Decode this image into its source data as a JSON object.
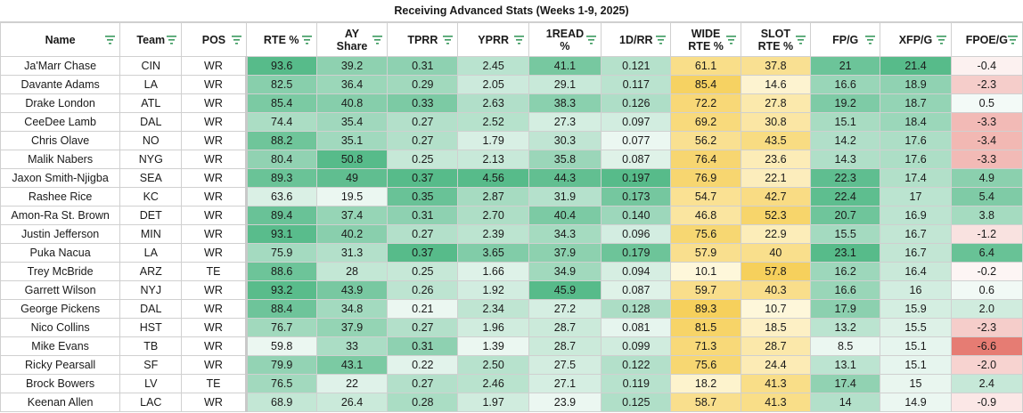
{
  "title": "Receiving Advanced Stats (Weeks 1-9, 2025)",
  "columns": [
    {
      "key": "name",
      "label": "Name"
    },
    {
      "key": "team",
      "label": "Team"
    },
    {
      "key": "pos",
      "label": "POS"
    },
    {
      "key": "rte",
      "label": "RTE %"
    },
    {
      "key": "ay",
      "label": "AY Share"
    },
    {
      "key": "tprr",
      "label": "TPRR"
    },
    {
      "key": "yprr",
      "label": "YPRR"
    },
    {
      "key": "read1",
      "label": "1READ %"
    },
    {
      "key": "d1rr",
      "label": "1D/RR"
    },
    {
      "key": "wide",
      "label": "WIDE RTE %"
    },
    {
      "key": "slot",
      "label": "SLOT RTE %"
    },
    {
      "key": "fpg",
      "label": "FP/G"
    },
    {
      "key": "xfpg",
      "label": "XFP/G"
    },
    {
      "key": "fpoe",
      "label": "FPOE/G"
    }
  ],
  "rows": [
    [
      "Ja'Marr Chase",
      "CIN",
      "WR",
      "93.6",
      "39.2",
      "0.31",
      "2.45",
      "41.1",
      "0.121",
      "61.1",
      "37.8",
      "21",
      "21.4",
      "-0.4"
    ],
    [
      "Davante Adams",
      "LA",
      "WR",
      "82.5",
      "36.4",
      "0.29",
      "2.05",
      "29.1",
      "0.117",
      "85.4",
      "14.6",
      "16.6",
      "18.9",
      "-2.3"
    ],
    [
      "Drake London",
      "ATL",
      "WR",
      "85.4",
      "40.8",
      "0.33",
      "2.63",
      "38.3",
      "0.126",
      "72.2",
      "27.8",
      "19.2",
      "18.7",
      "0.5"
    ],
    [
      "CeeDee Lamb",
      "DAL",
      "WR",
      "74.4",
      "35.4",
      "0.27",
      "2.52",
      "27.3",
      "0.097",
      "69.2",
      "30.8",
      "15.1",
      "18.4",
      "-3.3"
    ],
    [
      "Chris Olave",
      "NO",
      "WR",
      "88.2",
      "35.1",
      "0.27",
      "1.79",
      "30.3",
      "0.077",
      "56.2",
      "43.5",
      "14.2",
      "17.6",
      "-3.4"
    ],
    [
      "Malik Nabers",
      "NYG",
      "WR",
      "80.4",
      "50.8",
      "0.25",
      "2.13",
      "35.8",
      "0.087",
      "76.4",
      "23.6",
      "14.3",
      "17.6",
      "-3.3"
    ],
    [
      "Jaxon Smith-Njigba",
      "SEA",
      "WR",
      "89.3",
      "49",
      "0.37",
      "4.56",
      "44.3",
      "0.197",
      "76.9",
      "22.1",
      "22.3",
      "17.4",
      "4.9"
    ],
    [
      "Rashee Rice",
      "KC",
      "WR",
      "63.6",
      "19.5",
      "0.35",
      "2.87",
      "31.9",
      "0.173",
      "54.7",
      "42.7",
      "22.4",
      "17",
      "5.4"
    ],
    [
      "Amon-Ra St. Brown",
      "DET",
      "WR",
      "89.4",
      "37.4",
      "0.31",
      "2.70",
      "40.4",
      "0.140",
      "46.8",
      "52.3",
      "20.7",
      "16.9",
      "3.8"
    ],
    [
      "Justin Jefferson",
      "MIN",
      "WR",
      "93.1",
      "40.2",
      "0.27",
      "2.39",
      "34.3",
      "0.096",
      "75.6",
      "22.9",
      "15.5",
      "16.7",
      "-1.2"
    ],
    [
      "Puka Nacua",
      "LA",
      "WR",
      "75.9",
      "31.3",
      "0.37",
      "3.65",
      "37.9",
      "0.179",
      "57.9",
      "40",
      "23.1",
      "16.7",
      "6.4"
    ],
    [
      "Trey McBride",
      "ARZ",
      "TE",
      "88.6",
      "28",
      "0.25",
      "1.66",
      "34.9",
      "0.094",
      "10.1",
      "57.8",
      "16.2",
      "16.4",
      "-0.2"
    ],
    [
      "Garrett Wilson",
      "NYJ",
      "WR",
      "93.2",
      "43.9",
      "0.26",
      "1.92",
      "45.9",
      "0.087",
      "59.7",
      "40.3",
      "16.6",
      "16",
      "0.6"
    ],
    [
      "George Pickens",
      "DAL",
      "WR",
      "88.4",
      "34.8",
      "0.21",
      "2.34",
      "27.2",
      "0.128",
      "89.3",
      "10.7",
      "17.9",
      "15.9",
      "2.0"
    ],
    [
      "Nico Collins",
      "HST",
      "WR",
      "76.7",
      "37.9",
      "0.27",
      "1.96",
      "28.7",
      "0.081",
      "81.5",
      "18.5",
      "13.2",
      "15.5",
      "-2.3"
    ],
    [
      "Mike Evans",
      "TB",
      "WR",
      "59.8",
      "33",
      "0.31",
      "1.39",
      "28.7",
      "0.099",
      "71.3",
      "28.7",
      "8.5",
      "15.1",
      "-6.6"
    ],
    [
      "Ricky Pearsall",
      "SF",
      "WR",
      "79.9",
      "43.1",
      "0.22",
      "2.50",
      "27.5",
      "0.122",
      "75.6",
      "24.4",
      "13.1",
      "15.1",
      "-2.0"
    ],
    [
      "Brock Bowers",
      "LV",
      "TE",
      "76.5",
      "22",
      "0.27",
      "2.46",
      "27.1",
      "0.119",
      "18.2",
      "41.3",
      "17.4",
      "15",
      "2.4"
    ],
    [
      "Keenan Allen",
      "LAC",
      "WR",
      "68.9",
      "26.4",
      "0.28",
      "1.97",
      "23.9",
      "0.125",
      "58.7",
      "41.3",
      "14",
      "14.9",
      "-0.9"
    ]
  ],
  "colors": {
    "green_low": "#ffffff",
    "green_high": "#57bb8a",
    "yellow_low": "#fffbe8",
    "yellow_high": "#f6d05c",
    "red": "#e67c73",
    "filter_icon": "#3c9a5f"
  }
}
